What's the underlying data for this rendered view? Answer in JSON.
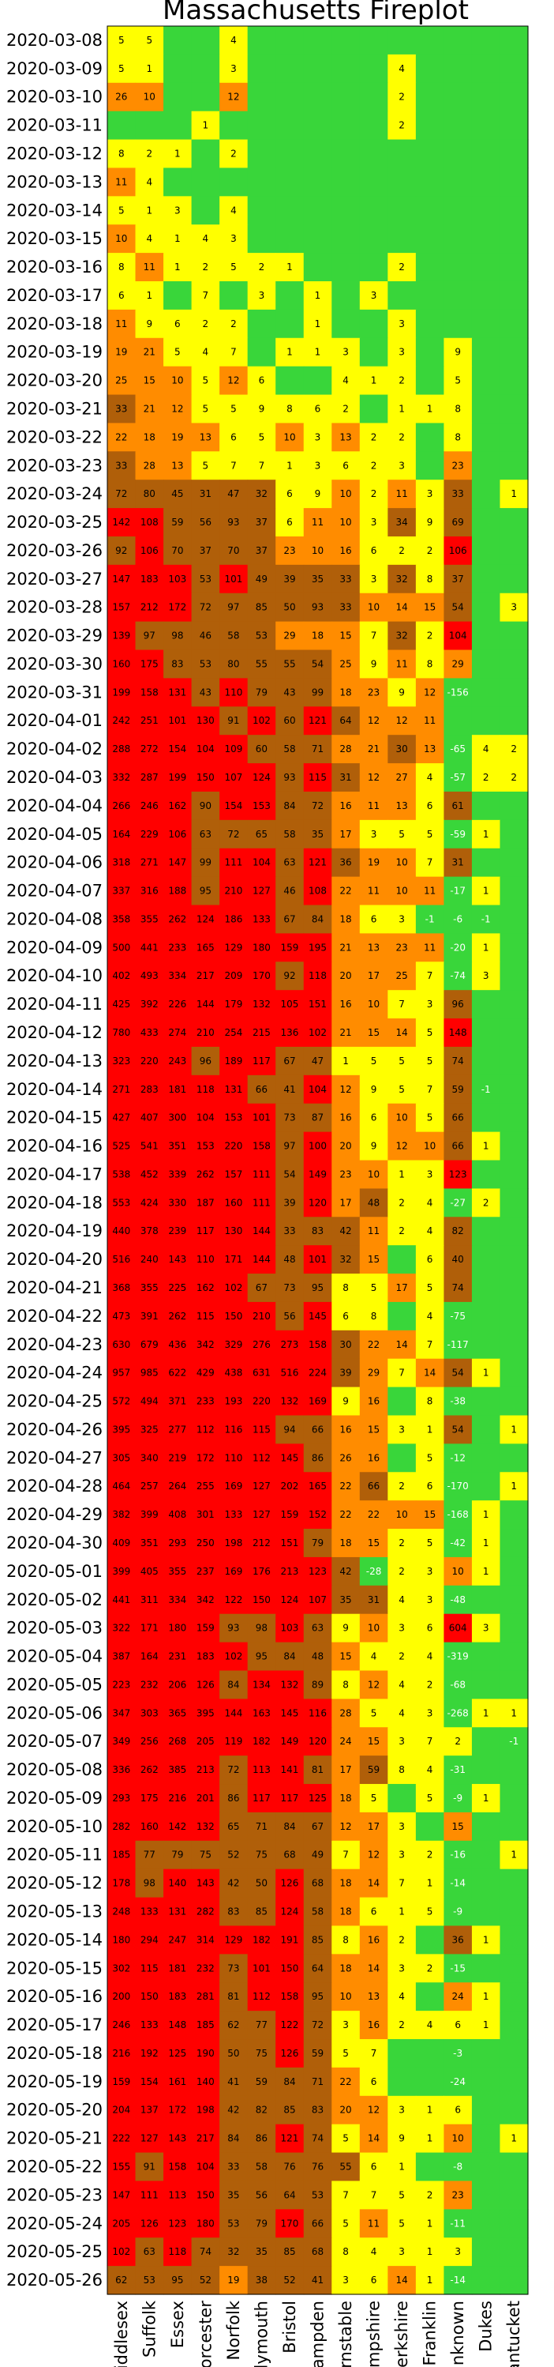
{
  "chart_data": {
    "type": "heatmap",
    "title": "Massachusetts Fireplot",
    "columns": [
      "Middlesex",
      "Suffolk",
      "Essex",
      "Worcester",
      "Norfolk",
      "Plymouth",
      "Bristol",
      "Hampden",
      "Barnstable",
      "Hampshire",
      "Berkshire",
      "Franklin",
      "Unknown",
      "Dukes",
      "Nantucket"
    ],
    "rows": [
      "2020-03-08",
      "2020-03-09",
      "2020-03-10",
      "2020-03-11",
      "2020-03-12",
      "2020-03-13",
      "2020-03-14",
      "2020-03-15",
      "2020-03-16",
      "2020-03-17",
      "2020-03-18",
      "2020-03-19",
      "2020-03-20",
      "2020-03-21",
      "2020-03-22",
      "2020-03-23",
      "2020-03-24",
      "2020-03-25",
      "2020-03-26",
      "2020-03-27",
      "2020-03-28",
      "2020-03-29",
      "2020-03-30",
      "2020-03-31",
      "2020-04-01",
      "2020-04-02",
      "2020-04-03",
      "2020-04-04",
      "2020-04-05",
      "2020-04-06",
      "2020-04-07",
      "2020-04-08",
      "2020-04-09",
      "2020-04-10",
      "2020-04-11",
      "2020-04-12",
      "2020-04-13",
      "2020-04-14",
      "2020-04-15",
      "2020-04-16",
      "2020-04-17",
      "2020-04-18",
      "2020-04-19",
      "2020-04-20",
      "2020-04-21",
      "2020-04-22",
      "2020-04-23",
      "2020-04-24",
      "2020-04-25",
      "2020-04-26",
      "2020-04-27",
      "2020-04-28",
      "2020-04-29",
      "2020-04-30",
      "2020-05-01",
      "2020-05-02",
      "2020-05-03",
      "2020-05-04",
      "2020-05-05",
      "2020-05-06",
      "2020-05-07",
      "2020-05-08",
      "2020-05-09",
      "2020-05-10",
      "2020-05-11",
      "2020-05-12",
      "2020-05-13",
      "2020-05-14",
      "2020-05-15",
      "2020-05-16",
      "2020-05-17",
      "2020-05-18",
      "2020-05-19",
      "2020-05-20",
      "2020-05-21",
      "2020-05-22",
      "2020-05-23",
      "2020-05-24",
      "2020-05-25",
      "2020-05-26"
    ],
    "values": [
      [
        5,
        5,
        0,
        0,
        4,
        0,
        0,
        0,
        0,
        0,
        0,
        0,
        0,
        0,
        0
      ],
      [
        5,
        1,
        0,
        0,
        3,
        0,
        0,
        0,
        0,
        0,
        4,
        0,
        0,
        0,
        0
      ],
      [
        26,
        10,
        0,
        0,
        12,
        0,
        0,
        0,
        0,
        0,
        2,
        0,
        0,
        0,
        0
      ],
      [
        0,
        0,
        0,
        1,
        0,
        0,
        0,
        0,
        0,
        0,
        2,
        0,
        0,
        0,
        0
      ],
      [
        8,
        2,
        1,
        0,
        2,
        0,
        0,
        0,
        0,
        0,
        0,
        0,
        0,
        0,
        0
      ],
      [
        11,
        4,
        0,
        0,
        0,
        0,
        0,
        0,
        0,
        0,
        0,
        0,
        0,
        0,
        0
      ],
      [
        5,
        1,
        3,
        0,
        4,
        0,
        0,
        0,
        0,
        0,
        0,
        0,
        0,
        0,
        0
      ],
      [
        10,
        4,
        1,
        4,
        3,
        0,
        0,
        0,
        0,
        0,
        0,
        0,
        0,
        0,
        0
      ],
      [
        8,
        11,
        1,
        2,
        5,
        2,
        1,
        0,
        0,
        0,
        2,
        0,
        0,
        0,
        0
      ],
      [
        6,
        1,
        0,
        7,
        0,
        3,
        0,
        1,
        0,
        3,
        0,
        0,
        0,
        0,
        0
      ],
      [
        11,
        9,
        6,
        2,
        2,
        0,
        0,
        1,
        0,
        0,
        3,
        0,
        0,
        0,
        0
      ],
      [
        19,
        21,
        5,
        4,
        7,
        0,
        1,
        1,
        3,
        0,
        3,
        0,
        9,
        0,
        0
      ],
      [
        25,
        15,
        10,
        5,
        12,
        6,
        0,
        0,
        4,
        1,
        2,
        0,
        5,
        0,
        0
      ],
      [
        33,
        21,
        12,
        5,
        5,
        9,
        8,
        6,
        2,
        0,
        1,
        1,
        8,
        0,
        0
      ],
      [
        22,
        18,
        19,
        13,
        6,
        5,
        10,
        3,
        13,
        2,
        2,
        0,
        8,
        0,
        0
      ],
      [
        33,
        28,
        13,
        5,
        7,
        7,
        1,
        3,
        6,
        2,
        3,
        0,
        23,
        0,
        0
      ],
      [
        72,
        80,
        45,
        31,
        47,
        32,
        6,
        9,
        10,
        2,
        11,
        3,
        33,
        0,
        1
      ],
      [
        142,
        108,
        59,
        56,
        93,
        37,
        6,
        11,
        10,
        3,
        34,
        9,
        69,
        0,
        0
      ],
      [
        92,
        106,
        70,
        37,
        70,
        37,
        23,
        10,
        16,
        6,
        2,
        2,
        106,
        0,
        0
      ],
      [
        147,
        183,
        103,
        53,
        101,
        49,
        39,
        35,
        33,
        3,
        32,
        8,
        37,
        0,
        0
      ],
      [
        157,
        212,
        172,
        72,
        97,
        85,
        50,
        93,
        33,
        10,
        14,
        15,
        54,
        0,
        3
      ],
      [
        139,
        97,
        98,
        46,
        58,
        53,
        29,
        18,
        15,
        7,
        32,
        2,
        104,
        0,
        0
      ],
      [
        160,
        175,
        83,
        53,
        80,
        55,
        55,
        54,
        25,
        9,
        11,
        8,
        29,
        0,
        0
      ],
      [
        199,
        158,
        131,
        43,
        110,
        79,
        43,
        99,
        18,
        23,
        9,
        12,
        -156,
        0,
        0
      ],
      [
        242,
        251,
        101,
        130,
        91,
        102,
        60,
        121,
        64,
        12,
        12,
        11,
        0,
        0,
        0
      ],
      [
        288,
        272,
        154,
        104,
        109,
        60,
        58,
        71,
        28,
        21,
        30,
        13,
        -65,
        4,
        2
      ],
      [
        332,
        287,
        199,
        150,
        107,
        124,
        93,
        115,
        31,
        12,
        27,
        4,
        -57,
        2,
        2
      ],
      [
        266,
        246,
        162,
        90,
        154,
        153,
        84,
        72,
        16,
        11,
        13,
        6,
        61,
        0,
        0
      ],
      [
        164,
        229,
        106,
        63,
        72,
        65,
        58,
        35,
        17,
        3,
        5,
        5,
        -59,
        1,
        0
      ],
      [
        318,
        271,
        147,
        99,
        111,
        104,
        63,
        121,
        36,
        19,
        10,
        7,
        31,
        0,
        0
      ],
      [
        337,
        316,
        188,
        95,
        210,
        127,
        46,
        108,
        22,
        11,
        10,
        11,
        -17,
        1,
        0
      ],
      [
        358,
        355,
        262,
        124,
        186,
        133,
        67,
        84,
        18,
        6,
        3,
        -1,
        -6,
        -1,
        0
      ],
      [
        500,
        441,
        233,
        165,
        129,
        180,
        159,
        195,
        21,
        13,
        23,
        11,
        -20,
        1,
        0
      ],
      [
        402,
        493,
        334,
        217,
        209,
        170,
        92,
        118,
        20,
        17,
        25,
        7,
        -74,
        3,
        0
      ],
      [
        425,
        392,
        226,
        144,
        179,
        132,
        105,
        151,
        16,
        10,
        7,
        3,
        96,
        0,
        0
      ],
      [
        780,
        433,
        274,
        210,
        254,
        215,
        136,
        102,
        21,
        15,
        14,
        5,
        148,
        0,
        0
      ],
      [
        323,
        220,
        243,
        96,
        189,
        117,
        67,
        47,
        1,
        5,
        5,
        5,
        74,
        0,
        0
      ],
      [
        271,
        283,
        181,
        118,
        131,
        66,
        41,
        104,
        12,
        9,
        5,
        7,
        59,
        -1,
        0
      ],
      [
        427,
        407,
        300,
        104,
        153,
        101,
        73,
        87,
        16,
        6,
        10,
        5,
        66,
        0,
        0
      ],
      [
        525,
        541,
        351,
        153,
        220,
        158,
        97,
        100,
        20,
        9,
        12,
        10,
        66,
        1,
        0
      ],
      [
        538,
        452,
        339,
        262,
        157,
        111,
        54,
        149,
        23,
        10,
        1,
        3,
        123,
        0,
        0
      ],
      [
        553,
        424,
        330,
        187,
        160,
        111,
        39,
        120,
        17,
        48,
        2,
        4,
        -27,
        2,
        0
      ],
      [
        440,
        378,
        239,
        117,
        130,
        144,
        33,
        83,
        42,
        11,
        2,
        4,
        82,
        0,
        0
      ],
      [
        516,
        240,
        143,
        110,
        171,
        144,
        48,
        101,
        32,
        15,
        0,
        6,
        40,
        0,
        0
      ],
      [
        368,
        355,
        225,
        162,
        102,
        67,
        73,
        95,
        8,
        5,
        17,
        5,
        74,
        0,
        0
      ],
      [
        473,
        391,
        262,
        115,
        150,
        210,
        56,
        145,
        6,
        8,
        0,
        4,
        -75,
        0,
        0
      ],
      [
        630,
        679,
        436,
        342,
        329,
        276,
        273,
        158,
        30,
        22,
        14,
        7,
        -117,
        0,
        0
      ],
      [
        957,
        985,
        622,
        429,
        438,
        631,
        516,
        224,
        39,
        29,
        7,
        14,
        54,
        1,
        0
      ],
      [
        572,
        494,
        371,
        233,
        193,
        220,
        132,
        169,
        9,
        16,
        0,
        8,
        -38,
        0,
        0
      ],
      [
        395,
        325,
        277,
        112,
        116,
        115,
        94,
        66,
        16,
        15,
        3,
        1,
        54,
        0,
        1
      ],
      [
        305,
        340,
        219,
        172,
        110,
        112,
        145,
        86,
        26,
        16,
        0,
        5,
        -12,
        0,
        0
      ],
      [
        464,
        257,
        264,
        255,
        169,
        127,
        202,
        165,
        22,
        66,
        2,
        6,
        -170,
        0,
        1
      ],
      [
        382,
        399,
        408,
        301,
        133,
        127,
        159,
        152,
        22,
        22,
        10,
        15,
        -168,
        1,
        0
      ],
      [
        409,
        351,
        293,
        250,
        198,
        212,
        151,
        79,
        18,
        15,
        2,
        5,
        -42,
        1,
        0
      ],
      [
        399,
        405,
        355,
        237,
        169,
        176,
        213,
        123,
        42,
        -28,
        2,
        3,
        10,
        1,
        0
      ],
      [
        441,
        311,
        334,
        342,
        122,
        150,
        124,
        107,
        35,
        31,
        4,
        3,
        -48,
        0,
        0
      ],
      [
        322,
        171,
        180,
        159,
        93,
        98,
        103,
        63,
        9,
        10,
        3,
        6,
        604,
        3,
        0
      ],
      [
        387,
        164,
        231,
        183,
        102,
        95,
        84,
        48,
        15,
        4,
        2,
        4,
        -319,
        0,
        0
      ],
      [
        223,
        232,
        206,
        126,
        84,
        134,
        132,
        89,
        8,
        12,
        4,
        2,
        -68,
        0,
        0
      ],
      [
        347,
        303,
        365,
        395,
        144,
        163,
        145,
        116,
        28,
        5,
        4,
        3,
        -268,
        1,
        1
      ],
      [
        349,
        256,
        268,
        205,
        119,
        182,
        149,
        120,
        24,
        15,
        3,
        7,
        2,
        0,
        -1
      ],
      [
        336,
        262,
        385,
        213,
        72,
        113,
        141,
        81,
        17,
        59,
        8,
        4,
        -31,
        0,
        0
      ],
      [
        293,
        175,
        216,
        201,
        86,
        117,
        117,
        125,
        18,
        5,
        0,
        5,
        -9,
        1,
        0
      ],
      [
        282,
        160,
        142,
        132,
        65,
        71,
        84,
        67,
        12,
        17,
        3,
        0,
        15,
        0,
        0
      ],
      [
        185,
        77,
        79,
        75,
        52,
        75,
        68,
        49,
        7,
        12,
        3,
        2,
        -16,
        0,
        1
      ],
      [
        178,
        98,
        140,
        143,
        42,
        50,
        126,
        68,
        18,
        14,
        7,
        1,
        -14,
        0,
        0
      ],
      [
        248,
        133,
        131,
        282,
        83,
        85,
        124,
        58,
        18,
        6,
        1,
        5,
        -9,
        0,
        0
      ],
      [
        180,
        294,
        247,
        314,
        129,
        182,
        191,
        85,
        8,
        16,
        2,
        0,
        36,
        1,
        0
      ],
      [
        302,
        115,
        181,
        232,
        73,
        101,
        150,
        64,
        18,
        14,
        3,
        2,
        -15,
        0,
        0
      ],
      [
        200,
        150,
        183,
        281,
        81,
        112,
        158,
        95,
        10,
        13,
        4,
        0,
        24,
        1,
        0
      ],
      [
        246,
        133,
        148,
        185,
        62,
        77,
        122,
        72,
        3,
        16,
        2,
        4,
        6,
        1,
        0
      ],
      [
        216,
        192,
        125,
        190,
        50,
        75,
        126,
        59,
        5,
        7,
        0,
        0,
        -3,
        0,
        0
      ],
      [
        159,
        154,
        161,
        140,
        41,
        59,
        84,
        71,
        22,
        6,
        0,
        0,
        -24,
        0,
        0
      ],
      [
        204,
        137,
        172,
        198,
        42,
        82,
        85,
        83,
        20,
        12,
        3,
        1,
        6,
        0,
        0
      ],
      [
        222,
        127,
        143,
        217,
        84,
        86,
        121,
        74,
        5,
        14,
        9,
        1,
        10,
        0,
        1
      ],
      [
        155,
        91,
        158,
        104,
        33,
        58,
        76,
        76,
        55,
        6,
        1,
        0,
        -8,
        0,
        0
      ],
      [
        147,
        111,
        113,
        150,
        35,
        56,
        64,
        53,
        7,
        7,
        5,
        2,
        23,
        0,
        0
      ],
      [
        205,
        126,
        123,
        180,
        53,
        79,
        170,
        66,
        5,
        11,
        5,
        1,
        -11,
        0,
        0
      ],
      [
        102,
        63,
        118,
        74,
        32,
        35,
        85,
        68,
        8,
        4,
        3,
        1,
        3,
        0,
        0
      ],
      [
        62,
        53,
        95,
        52,
        19,
        38,
        52,
        41,
        3,
        6,
        14,
        1,
        -14,
        0,
        0
      ]
    ],
    "colorscale": [
      {
        "level": "zero-or-negative",
        "color": "#39d63a"
      },
      {
        "level": "low",
        "color": "#ffff00"
      },
      {
        "level": "medium",
        "color": "#ff8c00"
      },
      {
        "level": "high",
        "color": "#b05f09"
      },
      {
        "level": "very-high",
        "color": "#ff0000"
      }
    ]
  }
}
